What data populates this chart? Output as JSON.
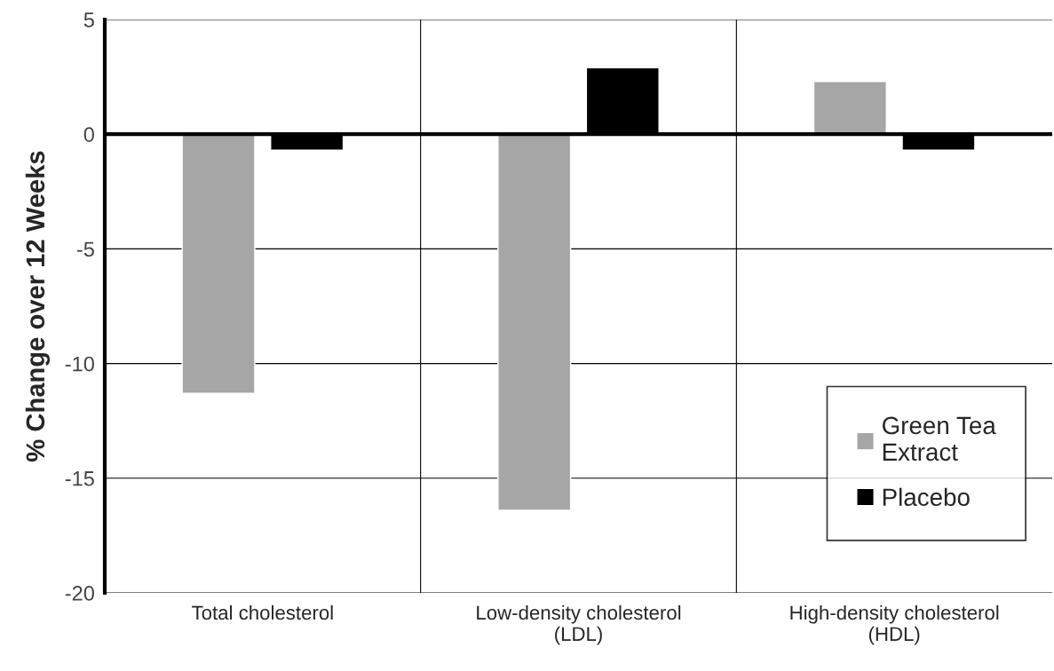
{
  "chart_data": {
    "type": "bar",
    "ylabel": "% Change over 12 Weeks",
    "categories": [
      "Total cholesterol",
      "Low-density cholesterol\n(LDL)",
      "High-density cholesterol\n(HDL)"
    ],
    "series": [
      {
        "name": "Green Tea\nExtract",
        "color": "#a6a6a6",
        "values": [
          -11.3,
          -16.4,
          2.3
        ]
      },
      {
        "name": "Placebo",
        "color": "#000000",
        "values": [
          -0.7,
          2.9,
          -0.7
        ]
      }
    ],
    "ylim": [
      -20,
      5
    ],
    "yticks": [
      -20,
      -15,
      -10,
      -5,
      0,
      5
    ],
    "ref_lines": [
      {
        "axis": "y",
        "value": 0,
        "color": "#000000"
      }
    ],
    "grid": true,
    "legend": "bottom right"
  }
}
